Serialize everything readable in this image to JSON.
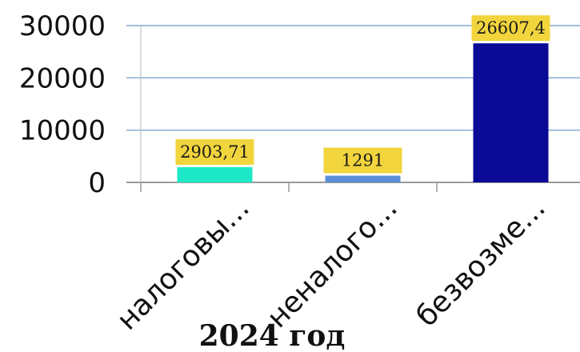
{
  "chart_data": {
    "type": "bar",
    "title": "2024 год",
    "categories": [
      "налоговы...",
      "неналого...",
      "безвозме..."
    ],
    "values": [
      2903.71,
      1291,
      26607.4
    ],
    "data_labels": [
      "2903,71",
      "1291",
      "26607,4"
    ],
    "colors": [
      "#1de9c9",
      "#5b8fd9",
      "#0a0a96"
    ],
    "ylim": [
      0,
      30000
    ],
    "yticks": [
      0,
      10000,
      20000,
      30000
    ],
    "ytick_labels": [
      "0",
      "10000",
      "20000",
      "30000"
    ],
    "xlabel": "",
    "ylabel": "",
    "grid": true,
    "gridline_color": "#7fa7cf",
    "data_label_bg": "#f2d53c",
    "legend": "none"
  }
}
